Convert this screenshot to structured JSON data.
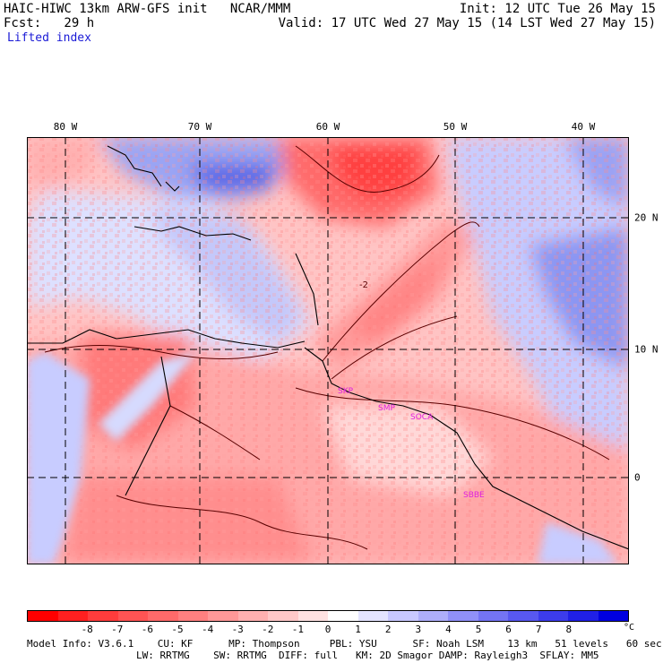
{
  "header": {
    "line1_left": "HAIC-HIWC 13km ARW-GFS init   NCAR/MMM",
    "line1_right": "Init: 12 UTC Tue 26 May 15",
    "line2_left": "Fcst:   29 h",
    "line2_right": "Valid: 17 UTC Wed 27 May 15 (14 LST Wed 27 May 15)",
    "field": "Lifted index"
  },
  "map": {
    "lon_labels": [
      "80 W",
      "70 W",
      "60 W",
      "50 W",
      "40 W"
    ],
    "lat_labels": [
      "20 N",
      "10 N",
      "0"
    ],
    "contour_label": "-2",
    "stations": [
      "SKP",
      "SMP",
      "SOCA",
      "SBBE"
    ]
  },
  "colorbar": {
    "colors": [
      "#ff0000",
      "#ff2020",
      "#ff3c3c",
      "#ff5454",
      "#ff6a6a",
      "#ff8080",
      "#ff9898",
      "#ffb0b0",
      "#ffc8c8",
      "#ffe2e2",
      "#ffffff",
      "#e4e4ff",
      "#c8c8ff",
      "#aeaefa",
      "#9090f8",
      "#7474f4",
      "#5858f0",
      "#3c3cec",
      "#2020e6",
      "#0000e0"
    ],
    "ticks": [
      "-8",
      "-7",
      "-6",
      "-5",
      "-4",
      "-3",
      "-2",
      "-1",
      "0",
      "1",
      "2",
      "3",
      "4",
      "5",
      "6",
      "7",
      "8"
    ],
    "unit": "°C"
  },
  "footer": {
    "line1": "Model Info: V3.6.1    CU: KF      MP: Thompson     PBL: YSU      SF: Noah LSM    13 km   51 levels   60 sec",
    "line2": "LW: RRTMG    SW: RRTMG  DIFF: full   KM: 2D Smagor DAMP: Rayleigh3  SFLAY: MM5"
  }
}
